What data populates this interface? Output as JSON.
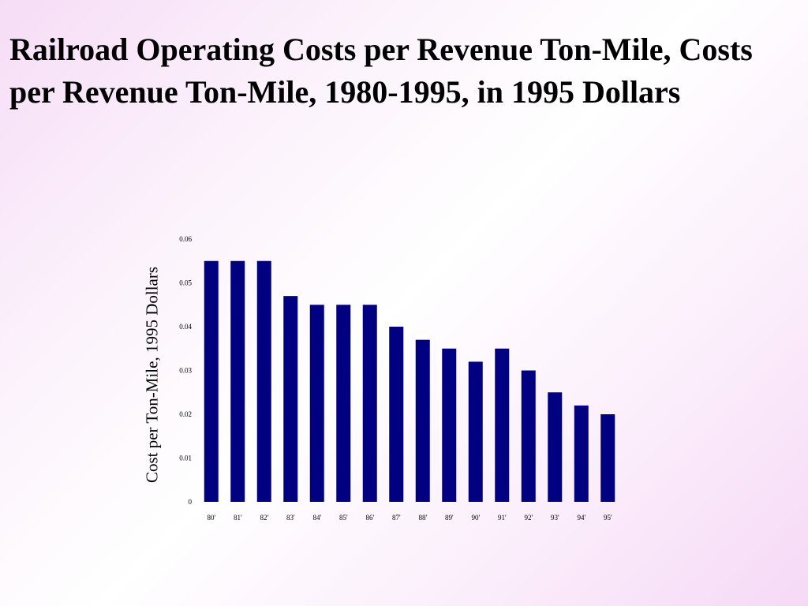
{
  "slide": {
    "title": "Railroad Operating Costs per Revenue Ton-Mile, Costs per Revenue Ton-Mile, 1980-1995, in 1995 Dollars"
  },
  "chart_data": {
    "type": "bar",
    "title": "",
    "xlabel": "",
    "ylabel": "Cost per Ton-Mile, 1995 Dollars",
    "categories": [
      "80'",
      "81'",
      "82'",
      "83'",
      "84'",
      "85'",
      "86'",
      "87'",
      "88'",
      "89'",
      "90'",
      "91'",
      "92'",
      "93'",
      "94'",
      "95'"
    ],
    "values": [
      0.055,
      0.055,
      0.055,
      0.047,
      0.045,
      0.045,
      0.045,
      0.04,
      0.037,
      0.035,
      0.032,
      0.035,
      0.03,
      0.025,
      0.022,
      0.02
    ],
    "yticks": [
      "0",
      "0.01",
      "0.02",
      "0.03",
      "0.04",
      "0.05",
      "0.06"
    ],
    "ylim": [
      0,
      0.06
    ],
    "grid": false,
    "legend": "none",
    "bar_color": "#000080"
  }
}
